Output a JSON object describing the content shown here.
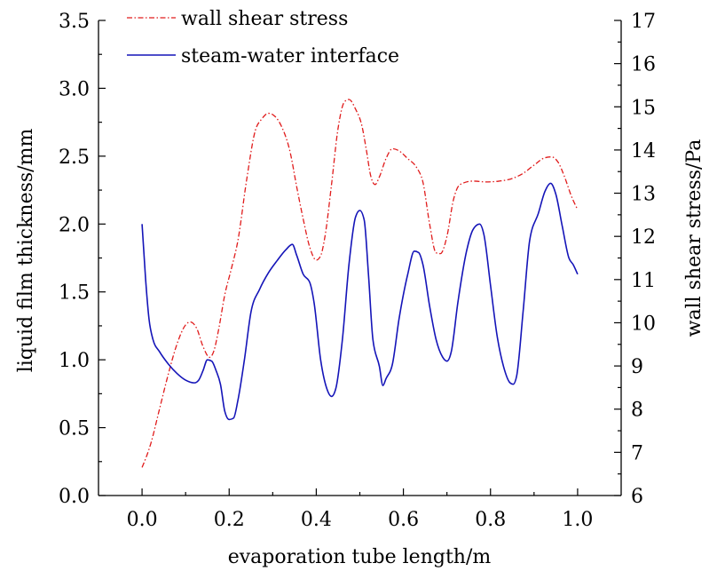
{
  "chart_data": {
    "type": "line",
    "xlabel": "evaporation tube length/m",
    "ylabel": "liquid film thickness/mm",
    "y2label": "wall shear stress/Pa",
    "xlim": [
      -0.1,
      1.1
    ],
    "ylim": [
      0,
      3.5
    ],
    "y2lim": [
      6,
      17
    ],
    "xticks": [
      "0.0",
      "0.2",
      "0.4",
      "0.6",
      "0.8",
      "1.0"
    ],
    "yticks": [
      "0.0",
      "0.5",
      "1.0",
      "1.5",
      "2.0",
      "2.5",
      "3.0",
      "3.5"
    ],
    "y2ticks": [
      "6",
      "7",
      "8",
      "9",
      "10",
      "11",
      "12",
      "13",
      "14",
      "15",
      "16",
      "17"
    ],
    "grid": false,
    "legend": "top-left",
    "series": [
      {
        "name": "wall shear stress",
        "axis": "right",
        "color": "#e01b1b",
        "line_style": "dash-dot",
        "x": [
          0,
          0.02,
          0.04,
          0.06,
          0.08,
          0.1,
          0.11,
          0.125,
          0.14,
          0.155,
          0.165,
          0.175,
          0.19,
          0.205,
          0.22,
          0.24,
          0.26,
          0.275,
          0.29,
          0.305,
          0.32,
          0.34,
          0.355,
          0.37,
          0.385,
          0.4,
          0.41,
          0.42,
          0.435,
          0.45,
          0.465,
          0.475,
          0.49,
          0.505,
          0.515,
          0.525,
          0.535,
          0.545,
          0.56,
          0.575,
          0.59,
          0.61,
          0.63,
          0.645,
          0.66,
          0.675,
          0.685,
          0.7,
          0.715,
          0.73,
          0.76,
          0.79,
          0.82,
          0.85,
          0.875,
          0.9,
          0.925,
          0.94,
          0.955,
          0.97,
          0.985,
          1.0
        ],
        "y": [
          6.65,
          7.2,
          8.0,
          8.8,
          9.5,
          9.95,
          10.02,
          9.88,
          9.45,
          9.2,
          9.35,
          9.8,
          10.65,
          11.25,
          11.9,
          13.3,
          14.45,
          14.72,
          14.85,
          14.78,
          14.55,
          13.95,
          13.15,
          12.4,
          11.75,
          11.45,
          11.55,
          12.0,
          13.2,
          14.5,
          15.12,
          15.17,
          14.95,
          14.55,
          14.0,
          13.4,
          13.2,
          13.38,
          13.8,
          14.03,
          13.98,
          13.8,
          13.6,
          13.25,
          12.3,
          11.62,
          11.6,
          12.0,
          12.85,
          13.2,
          13.28,
          13.26,
          13.28,
          13.34,
          13.46,
          13.65,
          13.82,
          13.84,
          13.72,
          13.38,
          12.95,
          12.62
        ]
      },
      {
        "name": "steam-water interface",
        "axis": "left",
        "color": "#1414b8",
        "line_style": "solid",
        "x": [
          0,
          0.008,
          0.016,
          0.025,
          0.04,
          0.06,
          0.08,
          0.1,
          0.12,
          0.13,
          0.14,
          0.15,
          0.16,
          0.17,
          0.18,
          0.19,
          0.2,
          0.21,
          0.22,
          0.235,
          0.25,
          0.27,
          0.29,
          0.31,
          0.33,
          0.345,
          0.355,
          0.37,
          0.385,
          0.395,
          0.41,
          0.425,
          0.435,
          0.445,
          0.46,
          0.475,
          0.49,
          0.5,
          0.51,
          0.52,
          0.53,
          0.545,
          0.553,
          0.56,
          0.575,
          0.59,
          0.61,
          0.625,
          0.635,
          0.645,
          0.66,
          0.675,
          0.69,
          0.7,
          0.71,
          0.725,
          0.745,
          0.76,
          0.775,
          0.785,
          0.8,
          0.815,
          0.83,
          0.845,
          0.852,
          0.86,
          0.875,
          0.89,
          0.91,
          0.925,
          0.938,
          0.95,
          0.965,
          0.98,
          0.99,
          1.0
        ],
        "y": [
          2.0,
          1.6,
          1.3,
          1.15,
          1.06,
          0.97,
          0.9,
          0.85,
          0.83,
          0.85,
          0.92,
          1.0,
          0.99,
          0.92,
          0.82,
          0.62,
          0.56,
          0.57,
          0.7,
          1.0,
          1.35,
          1.52,
          1.64,
          1.73,
          1.81,
          1.85,
          1.77,
          1.63,
          1.57,
          1.42,
          1.0,
          0.78,
          0.73,
          0.79,
          1.15,
          1.7,
          2.05,
          2.1,
          2.03,
          1.62,
          1.15,
          0.95,
          0.81,
          0.86,
          0.97,
          1.3,
          1.63,
          1.8,
          1.79,
          1.7,
          1.4,
          1.15,
          1.02,
          0.99,
          1.06,
          1.42,
          1.8,
          1.96,
          2.0,
          1.92,
          1.55,
          1.18,
          0.95,
          0.83,
          0.82,
          0.88,
          1.36,
          1.88,
          2.08,
          2.24,
          2.3,
          2.22,
          1.98,
          1.75,
          1.7,
          1.63
        ]
      }
    ]
  }
}
